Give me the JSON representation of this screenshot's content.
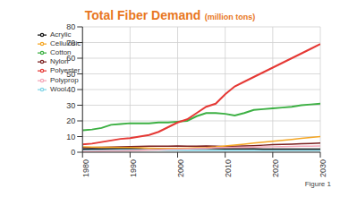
{
  "chart_data": {
    "type": "line",
    "title": "Total Fiber Demand",
    "subtitle": "(million tons)",
    "annotations": [
      "Figure 1"
    ],
    "x": [
      1980,
      1982,
      1984,
      1986,
      1988,
      1990,
      1992,
      1994,
      1996,
      1998,
      2000,
      2002,
      2004,
      2006,
      2008,
      2010,
      2012,
      2014,
      2016,
      2018,
      2020,
      2022,
      2024,
      2026,
      2028,
      2030
    ],
    "xlim": [
      1980,
      2030
    ],
    "xticks": [
      1980,
      1990,
      2000,
      2010,
      2020,
      2030
    ],
    "ylim": [
      0,
      80
    ],
    "yticks": [
      0,
      10,
      20,
      30,
      40,
      50,
      60,
      70,
      80
    ],
    "grid": true,
    "legend": "top-left",
    "series": [
      {
        "name": "Wool",
        "color": "#7fd3e6",
        "values": [
          1.6,
          1.6,
          1.7,
          1.7,
          1.8,
          1.7,
          1.5,
          1.4,
          1.4,
          1.3,
          1.3,
          1.2,
          1.2,
          1.2,
          1.1,
          1.1,
          1.1,
          1.1,
          1.1,
          1.1,
          1.1,
          1.1,
          1.1,
          1.1,
          1.1,
          1.1
        ]
      },
      {
        "name": "Cotton",
        "color": "#3cb043",
        "values": [
          14,
          14.5,
          15.5,
          17.5,
          18,
          18.5,
          18.5,
          18.5,
          19,
          19,
          19.5,
          20,
          23,
          25,
          25,
          24.5,
          23.5,
          25,
          27,
          27.5,
          28,
          28.5,
          29,
          30,
          30.5,
          31
        ]
      },
      {
        "name": "Polyester",
        "color": "#e53935",
        "values": [
          5,
          5.5,
          6.5,
          7.5,
          8.5,
          9,
          10,
          11,
          13,
          16,
          19,
          21,
          25,
          29,
          31,
          37,
          42,
          45,
          48,
          51,
          54,
          57,
          60,
          63,
          66,
          69
        ]
      },
      {
        "name": "Nylon",
        "color": "#7b1f1f",
        "values": [
          3,
          3,
          3.2,
          3.3,
          3.5,
          3.6,
          3.7,
          3.8,
          3.8,
          3.9,
          4,
          3.8,
          3.9,
          4,
          3.8,
          3.6,
          3.8,
          4,
          4.2,
          4.5,
          4.8,
          5,
          5.2,
          5.4,
          5.6,
          5.8
        ]
      },
      {
        "name": "Acrylic",
        "color": "#111111",
        "values": [
          2,
          2.1,
          2.2,
          2.3,
          2.4,
          2.4,
          2.4,
          2.5,
          2.5,
          2.5,
          2.5,
          2.4,
          2.4,
          2.4,
          2.3,
          2.2,
          2.2,
          2.1,
          2.1,
          2,
          2,
          2,
          2,
          2,
          2,
          2
        ]
      },
      {
        "name": "Cellulosic",
        "color": "#f5a623",
        "values": [
          3.5,
          3.3,
          3.2,
          3.1,
          3,
          3,
          2.8,
          2.6,
          2.5,
          2.5,
          2.5,
          2.6,
          2.8,
          3,
          3.4,
          4,
          4.6,
          5.2,
          5.8,
          6.4,
          7,
          7.6,
          8.2,
          8.8,
          9.4,
          10
        ]
      },
      {
        "name": "Polyprop",
        "color": "#f4a6b8",
        "values": [
          0.5,
          0.6,
          0.7,
          0.8,
          0.9,
          1,
          1.2,
          1.4,
          1.6,
          1.8,
          2,
          2.2,
          2.4,
          2.6,
          2.8,
          3,
          3.1,
          3.2,
          3.3,
          3.4,
          3.5,
          3.6,
          3.7,
          3.8,
          3.9,
          4
        ]
      }
    ]
  }
}
